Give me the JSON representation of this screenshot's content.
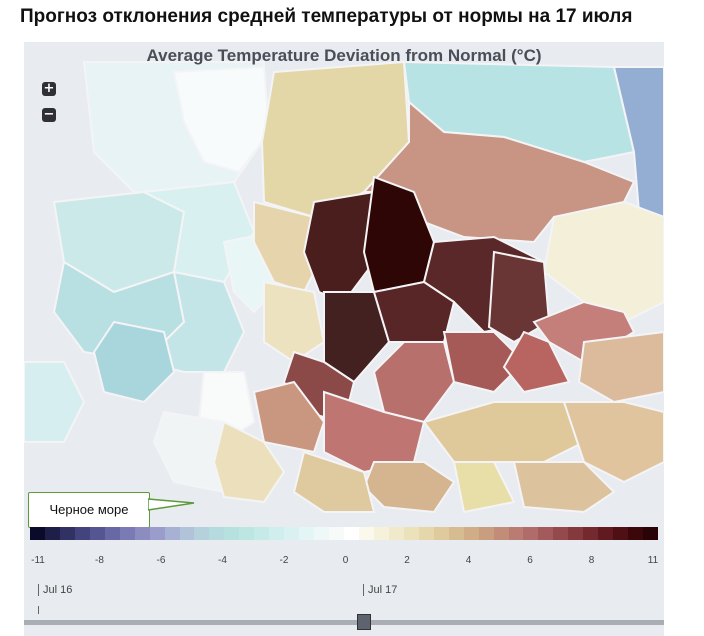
{
  "page_title": "Прогноз отклонения средней температуры от нормы на 17 июля",
  "map": {
    "title": "Average Temperature Deviation from Normal (°C)",
    "zoom_in_label": "+",
    "zoom_out_label": "−",
    "callout_label": "Черное море",
    "colors": {
      "water": "#e8ebf0",
      "region_border": "#f4f4f6",
      "hottest": "#2e0606",
      "coldest": "#0b0b2e",
      "neutral": "#ffffff"
    }
  },
  "legend": {
    "ticks": [
      "-11",
      "-8",
      "-6",
      "-4",
      "-2",
      "0",
      "2",
      "4",
      "6",
      "8",
      "11"
    ],
    "colors": [
      "#0a0a2a",
      "#1e1e48",
      "#313164",
      "#43437e",
      "#555593",
      "#6868a6",
      "#7a7ab4",
      "#8c8cc0",
      "#9a9ccb",
      "#a6b1d3",
      "#b0c3d9",
      "#b4d1dc",
      "#b5dbde",
      "#b7e1df",
      "#bde6e3",
      "#c5eae8",
      "#cfeeed",
      "#d9f2f1",
      "#e3f5f4",
      "#edf8f7",
      "#f6fbfa",
      "#ffffff",
      "#fbf8ec",
      "#f6f1da",
      "#f1eaca",
      "#ebe1bb",
      "#e5d6ab",
      "#dfca9d",
      "#d8bc91",
      "#d1ad87",
      "#c99d7f",
      "#c18c78",
      "#b97b72",
      "#b06b6b",
      "#a35a5c",
      "#94494c",
      "#843a3d",
      "#73292e",
      "#611b20",
      "#4e1015",
      "#3b070b",
      "#2a0306"
    ]
  },
  "timeline": {
    "start_label": "Jul 16",
    "current_label": "Jul 17"
  }
}
